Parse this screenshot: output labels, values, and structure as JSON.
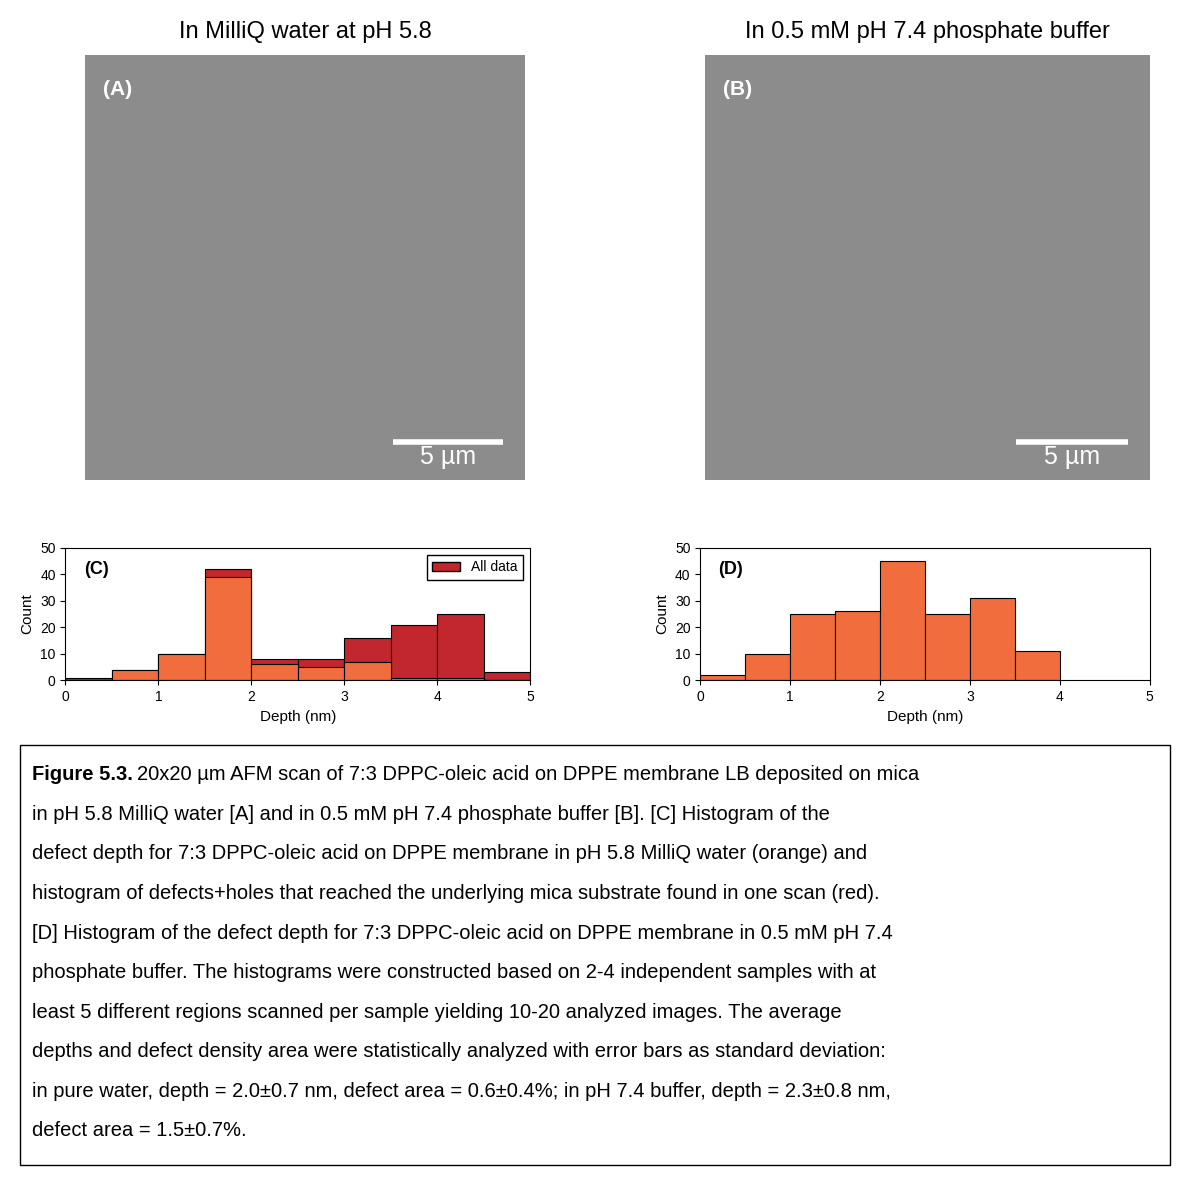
{
  "images": [
    {
      "title": "In MilliQ water at pH 5.8",
      "label": "(A)",
      "scan_size": 20,
      "scale_bar": 5,
      "scale_bar_label": "5 µm"
    },
    {
      "title": "In 0.5 mM pH 7.4 phosphate buffer",
      "label": "(B)",
      "scan_size": 20,
      "scale_bar": 5,
      "scale_bar_label": "5 µm"
    }
  ],
  "chart_data": [
    {
      "type": "histogram",
      "annotation": "(C)",
      "x_label": "Depth (nm)",
      "y_label": "Count",
      "bins": [
        0,
        0.5,
        1,
        1.5,
        2,
        2.5,
        3,
        3.5,
        4,
        4.5,
        5
      ],
      "series": [
        {
          "name": "All data",
          "color": "#c1272d",
          "values": [
            1,
            4,
            10,
            42,
            8,
            8,
            16,
            21,
            25,
            3
          ]
        },
        {
          "color": "#f26d3d",
          "values": [
            0,
            4,
            10,
            39,
            6,
            5,
            7,
            1,
            1,
            0
          ]
        }
      ],
      "xlim": [
        0,
        5
      ],
      "xticks": [
        0,
        1,
        2,
        3,
        4,
        5
      ],
      "ylim": [
        0,
        50
      ],
      "yticks": [
        0,
        10,
        20,
        30,
        40,
        50
      ],
      "legend": "upper right"
    },
    {
      "type": "histogram",
      "annotation": "(D)",
      "x_label": "Depth (nm)",
      "y_label": "Count",
      "bins": [
        0,
        0.5,
        1,
        1.5,
        2,
        2.5,
        3,
        3.5,
        4
      ],
      "series": [
        {
          "color": "#f26d3d",
          "values": [
            2,
            10,
            25,
            26,
            45,
            25,
            31,
            11
          ]
        }
      ],
      "xlim": [
        0,
        5
      ],
      "xticks": [
        0,
        1,
        2,
        3,
        4,
        5
      ],
      "ylim": [
        0,
        50
      ],
      "yticks": [
        0,
        10,
        20,
        30,
        40,
        50
      ]
    }
  ],
  "caption": {
    "label": "Figure 5.3.",
    "lines": [
      "20x20 µm AFM scan of 7:3 DPPC-oleic acid on DPPE membrane LB deposited on mica",
      "in pH 5.8 MilliQ water [A] and in 0.5 mM pH 7.4 phosphate buffer [B]. [C] Histogram of the",
      "defect depth for 7:3 DPPC-oleic acid on DPPE membrane in pH 5.8 MilliQ water (orange) and",
      "histogram of defects+holes that reached the underlying mica substrate found in one scan (red).",
      "[D] Histogram of the defect depth for 7:3 DPPC-oleic acid on DPPE membrane in 0.5 mM pH 7.4",
      "phosphate buffer. The histograms were constructed based on 2-4 independent samples with at",
      "least 5 different regions scanned per sample yielding 10-20 analyzed images. The average",
      "depths and defect density area were statistically analyzed with error bars as standard deviation:",
      "in pure water, depth = 2.0±0.7 nm, defect area = 0.6±0.4%; in pH 7.4 buffer, depth = 2.3±0.8 nm,",
      "defect area = 1.5±0.7%."
    ]
  }
}
